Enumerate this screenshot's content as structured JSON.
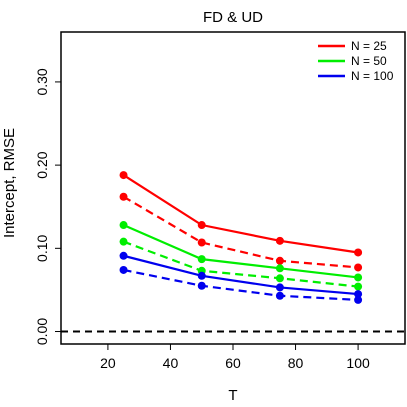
{
  "chart_data": {
    "type": "line",
    "title": "FD  &  UD",
    "xlabel": "T",
    "ylabel": "Intercept, RMSE",
    "x": [
      25,
      50,
      75,
      100
    ],
    "xlim": [
      5,
      115
    ],
    "ylim": [
      -0.015,
      0.36
    ],
    "xticks": [
      "20",
      "40",
      "60",
      "80",
      "100"
    ],
    "yticks": [
      "0.00",
      "0.10",
      "0.20",
      "0.30"
    ],
    "reference_line": {
      "y": 0.0,
      "style": "dashed",
      "color": "#000000"
    },
    "legend_position": "top-right",
    "legend": [
      {
        "label": "N = 25",
        "color": "#ff0000"
      },
      {
        "label": "N = 50",
        "color": "#00ee00"
      },
      {
        "label": "N = 100",
        "color": "#0000ee"
      }
    ],
    "series": [
      {
        "color": "#ff0000",
        "style": "solid",
        "values": [
          0.188,
          0.128,
          0.109,
          0.095
        ]
      },
      {
        "color": "#ff0000",
        "style": "dashed",
        "values": [
          0.162,
          0.107,
          0.085,
          0.077
        ]
      },
      {
        "color": "#00ee00",
        "style": "solid",
        "values": [
          0.128,
          0.087,
          0.076,
          0.065
        ]
      },
      {
        "color": "#00ee00",
        "style": "dashed",
        "values": [
          0.108,
          0.073,
          0.064,
          0.054
        ]
      },
      {
        "color": "#0000ee",
        "style": "solid",
        "values": [
          0.091,
          0.067,
          0.053,
          0.045
        ]
      },
      {
        "color": "#0000ee",
        "style": "dashed",
        "values": [
          0.074,
          0.055,
          0.043,
          0.038
        ]
      }
    ]
  }
}
